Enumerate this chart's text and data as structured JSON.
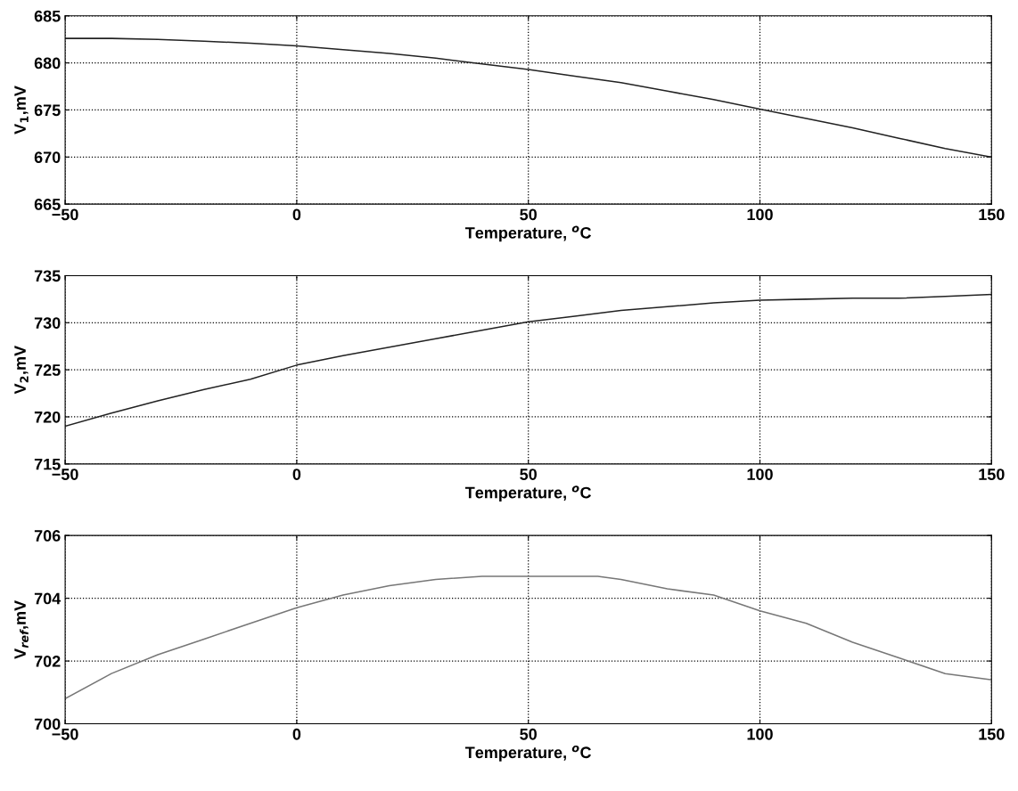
{
  "chart_data": [
    {
      "type": "line",
      "xlabel": "Temperature, $^{o}$C",
      "ylabel": "V$_{1}$,mV",
      "xlim": [
        -50,
        150
      ],
      "ylim": [
        665,
        685
      ],
      "xticks": [
        -50,
        0,
        50,
        100,
        150
      ],
      "yticks": [
        665,
        670,
        675,
        680,
        685
      ],
      "grid": true,
      "line_style": "solid",
      "x": [
        -50,
        -40,
        -30,
        -20,
        -10,
        0,
        10,
        20,
        30,
        40,
        50,
        60,
        70,
        80,
        90,
        100,
        110,
        120,
        130,
        140,
        150
      ],
      "series": [
        {
          "color": "#222222",
          "values": [
            682.6,
            682.6,
            682.5,
            682.3,
            682.1,
            681.8,
            681.4,
            681.0,
            680.5,
            679.9,
            679.3,
            678.6,
            677.9,
            677.0,
            676.1,
            675.1,
            674.1,
            673.1,
            672.0,
            670.9,
            670.0
          ]
        }
      ]
    },
    {
      "type": "line",
      "xlabel": "Temperature, $^{o}$C",
      "ylabel": "V$_{2}$,mV",
      "xlim": [
        -50,
        150
      ],
      "ylim": [
        715,
        735
      ],
      "xticks": [
        -50,
        0,
        50,
        100,
        150
      ],
      "yticks": [
        715,
        720,
        725,
        730,
        735
      ],
      "grid": true,
      "line_style": "solid",
      "x": [
        -50,
        -40,
        -30,
        -20,
        -10,
        0,
        10,
        20,
        30,
        40,
        50,
        60,
        70,
        80,
        90,
        100,
        110,
        120,
        130,
        140,
        150
      ],
      "series": [
        {
          "color": "#222222",
          "values": [
            719.0,
            720.4,
            721.7,
            722.9,
            724.0,
            725.5,
            726.5,
            727.4,
            728.3,
            729.2,
            730.1,
            730.7,
            731.3,
            731.7,
            732.1,
            732.4,
            732.5,
            732.6,
            732.6,
            732.8,
            733.0
          ]
        }
      ]
    },
    {
      "type": "line",
      "xlabel": "Temperature, $^{o}$C",
      "ylabel": "V$_{ref}$,mV",
      "xlim": [
        -50,
        150
      ],
      "ylim": [
        700,
        706
      ],
      "xticks": [
        -50,
        0,
        50,
        100,
        150
      ],
      "yticks": [
        700,
        702,
        704,
        706
      ],
      "grid": true,
      "line_style": "solid",
      "x": [
        -50,
        -40,
        -30,
        -20,
        -10,
        0,
        10,
        20,
        30,
        40,
        50,
        60,
        65,
        70,
        80,
        90,
        100,
        110,
        120,
        130,
        140,
        150
      ],
      "series": [
        {
          "color": "#777777",
          "values": [
            700.8,
            701.6,
            702.2,
            702.7,
            703.2,
            703.7,
            704.1,
            704.4,
            704.6,
            704.7,
            704.7,
            704.7,
            704.7,
            704.6,
            704.3,
            704.1,
            703.6,
            703.2,
            702.6,
            702.1,
            701.6,
            701.4
          ]
        }
      ]
    }
  ]
}
